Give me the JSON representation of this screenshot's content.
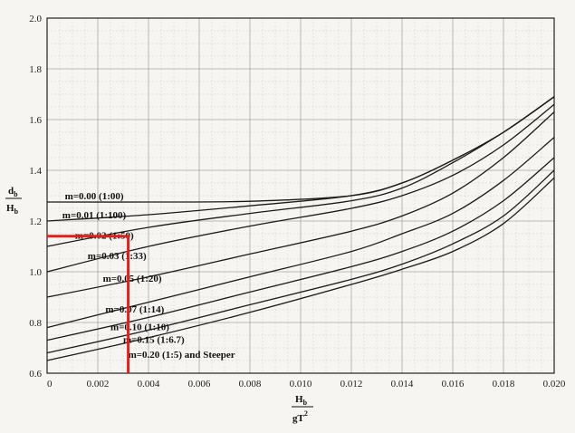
{
  "chart_data": {
    "type": "line",
    "title": "",
    "xlabel": {
      "num": "H",
      "num_sub": "b",
      "den": "gT",
      "den_sup": "2"
    },
    "ylabel": {
      "num": "d",
      "num_sub": "b",
      "den": "H",
      "den_sub": "b"
    },
    "xlim": [
      0,
      0.02
    ],
    "ylim": [
      0.6,
      2.0
    ],
    "x_ticks": [
      "0",
      "0.002",
      "0.004",
      "0.006",
      "0.008",
      "0.010",
      "0.012",
      "0.014",
      "0.016",
      "0.018",
      "0.020"
    ],
    "y_ticks": [
      "0.6",
      "0.8",
      "1.0",
      "1.2",
      "1.4",
      "1.6",
      "1.8",
      "2.0"
    ],
    "grid": true,
    "series": [
      {
        "name": "m=0.00 (1:00)",
        "x": [
          0,
          0.004,
          0.008,
          0.012,
          0.014,
          0.016,
          0.018,
          0.02
        ],
        "y": [
          1.275,
          1.275,
          1.278,
          1.3,
          1.35,
          1.44,
          1.55,
          1.69
        ]
      },
      {
        "name": "m=0.01 (1:100)",
        "x": [
          0,
          0.004,
          0.008,
          0.012,
          0.014,
          0.016,
          0.018,
          0.02
        ],
        "y": [
          1.2,
          1.225,
          1.26,
          1.3,
          1.35,
          1.44,
          1.55,
          1.69
        ]
      },
      {
        "name": "m=0.02 (1:50)",
        "x": [
          0,
          0.004,
          0.008,
          0.012,
          0.014,
          0.016,
          0.018,
          0.02
        ],
        "y": [
          1.1,
          1.175,
          1.23,
          1.28,
          1.33,
          1.43,
          1.55,
          1.69
        ]
      },
      {
        "name": "m=0.03 (1:33)",
        "x": [
          0,
          0.004,
          0.008,
          0.012,
          0.014,
          0.016,
          0.018,
          0.02
        ],
        "y": [
          1.0,
          1.1,
          1.18,
          1.25,
          1.3,
          1.38,
          1.5,
          1.66
        ]
      },
      {
        "name": "m=0.05 (1:20)",
        "x": [
          0,
          0.004,
          0.008,
          0.012,
          0.014,
          0.016,
          0.018,
          0.02
        ],
        "y": [
          0.9,
          0.98,
          1.07,
          1.16,
          1.22,
          1.31,
          1.45,
          1.63
        ]
      },
      {
        "name": "m=0.07 (1:14)",
        "x": [
          0,
          0.004,
          0.008,
          0.012,
          0.014,
          0.016,
          0.018,
          0.02
        ],
        "y": [
          0.78,
          0.88,
          0.98,
          1.08,
          1.15,
          1.23,
          1.36,
          1.53
        ]
      },
      {
        "name": "m=0.10 (1:10)",
        "x": [
          0,
          0.004,
          0.008,
          0.012,
          0.014,
          0.016,
          0.018,
          0.02
        ],
        "y": [
          0.73,
          0.82,
          0.92,
          1.02,
          1.08,
          1.16,
          1.28,
          1.45
        ]
      },
      {
        "name": "m=0.15 (1:6.7)",
        "x": [
          0,
          0.004,
          0.008,
          0.012,
          0.014,
          0.016,
          0.018,
          0.02
        ],
        "y": [
          0.68,
          0.77,
          0.87,
          0.97,
          1.03,
          1.11,
          1.22,
          1.4
        ]
      },
      {
        "name": "m=0.20 (1:5) and Steeper",
        "x": [
          0,
          0.004,
          0.008,
          0.012,
          0.014,
          0.016,
          0.018,
          0.02
        ],
        "y": [
          0.65,
          0.74,
          0.84,
          0.95,
          1.01,
          1.08,
          1.19,
          1.37
        ]
      }
    ],
    "label_anchors": [
      [
        0.0007,
        1.285
      ],
      [
        0.0006,
        1.21
      ],
      [
        0.0011,
        1.13
      ],
      [
        0.0016,
        1.05
      ],
      [
        0.0022,
        0.96
      ],
      [
        0.0023,
        0.84
      ],
      [
        0.0025,
        0.77
      ],
      [
        0.003,
        0.72
      ],
      [
        0.0032,
        0.66
      ]
    ],
    "annotation": {
      "color": "#e0201c",
      "x": [
        0,
        0.0032,
        0.0032
      ],
      "y": [
        1.14,
        1.14,
        0.6
      ]
    }
  }
}
